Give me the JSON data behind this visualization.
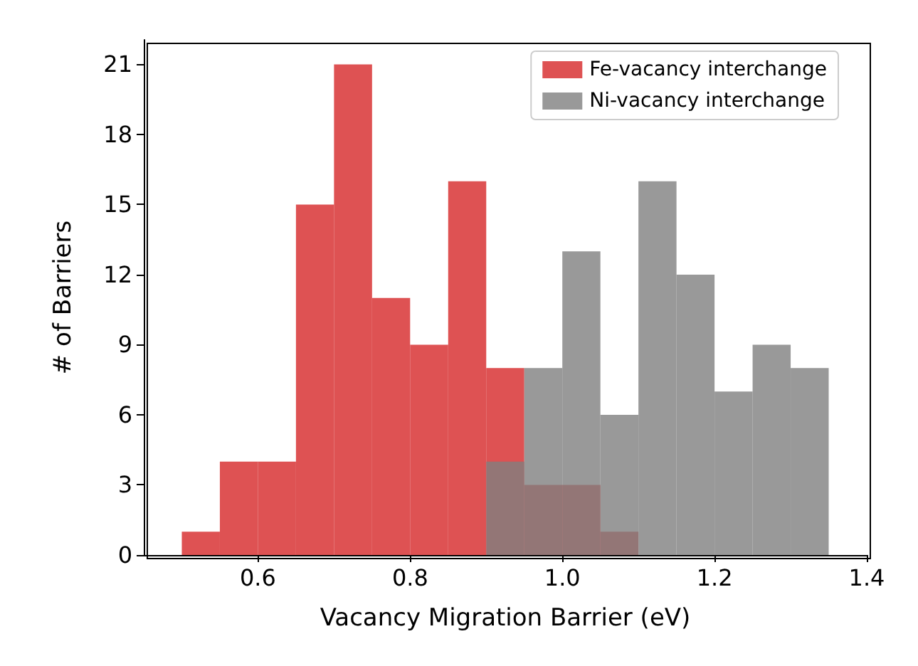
{
  "chart_data": {
    "type": "histogram",
    "xlabel": "Vacancy Migration Barrier (eV)",
    "ylabel": "# of Barriers",
    "bins": [
      0.5,
      0.55,
      0.6,
      0.65,
      0.7,
      0.75,
      0.8,
      0.85,
      0.9,
      0.95,
      1.0,
      1.05,
      1.1,
      1.15,
      1.2,
      1.25,
      1.3,
      1.35
    ],
    "series": [
      {
        "name": "Fe-vacancy interchange",
        "color": "#d62728",
        "values": [
          1,
          4,
          4,
          15,
          21,
          11,
          9,
          16,
          8,
          3,
          3,
          1,
          0,
          0,
          0,
          0,
          0
        ]
      },
      {
        "name": "Ni-vacancy interchange",
        "color": "#7f7f7f",
        "values": [
          0,
          0,
          0,
          0,
          0,
          0,
          0,
          0,
          4,
          8,
          13,
          6,
          16,
          12,
          7,
          9,
          8
        ]
      }
    ],
    "xlim": [
      0.45,
      1.4
    ],
    "xticks": [
      0.6,
      0.8,
      {
        "value": 1.0,
        "label": "1.0"
      },
      1.2,
      1.4
    ],
    "ylim": [
      0,
      22.05
    ],
    "yticks": [
      0,
      3,
      6,
      9,
      12,
      15,
      18,
      21
    ],
    "grid": false,
    "legend": "top right"
  }
}
